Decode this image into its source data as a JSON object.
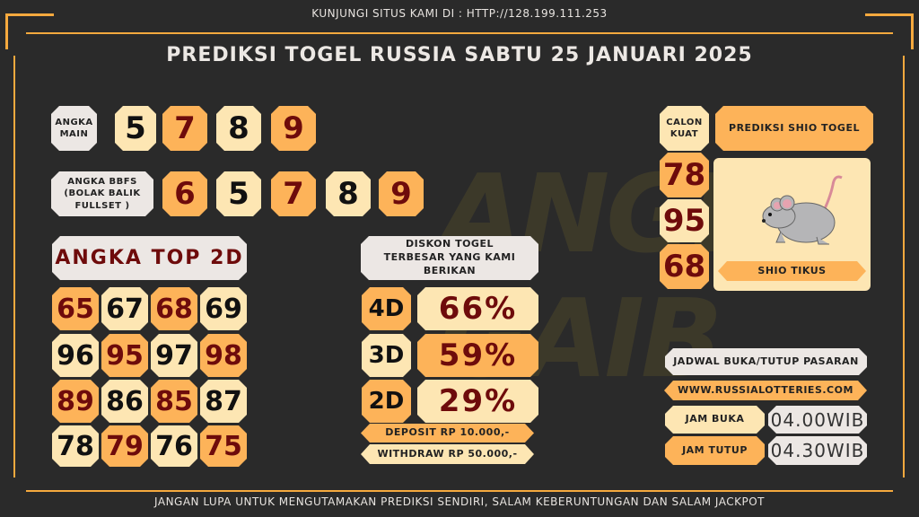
{
  "header": {
    "visit_text": "KUNJUNGI SITUS KAMI DI : HTTP://128.199.111.253",
    "title": "PREDIKSI TOGEL RUSSIA SABTU 25 JANUARI 2025"
  },
  "angka_main": {
    "label": "ANGKA MAIN",
    "digits": [
      "5",
      "7",
      "8",
      "9"
    ]
  },
  "bbfs": {
    "label": "ANGKA BBFS (BOLAK BALIK FULLSET )",
    "digits": [
      "6",
      "5",
      "7",
      "8",
      "9"
    ]
  },
  "top2d": {
    "title": "ANGKA TOP 2D",
    "rows": [
      [
        "65",
        "67",
        "68",
        "69"
      ],
      [
        "96",
        "95",
        "97",
        "98"
      ],
      [
        "89",
        "86",
        "85",
        "87"
      ],
      [
        "78",
        "79",
        "76",
        "75"
      ]
    ]
  },
  "diskon": {
    "title": "DISKON TOGEL TERBESAR YANG KAMI BERIKAN",
    "items": [
      {
        "code": "4D",
        "value": "66%"
      },
      {
        "code": "3D",
        "value": "59%"
      },
      {
        "code": "2D",
        "value": "29%"
      }
    ],
    "deposit": "DEPOSIT RP 10.000,-",
    "withdraw": "WITHDRAW RP 50.000,-"
  },
  "shio": {
    "calon_label": "CALON KUAT",
    "title": "PREDIKSI SHIO TOGEL",
    "calon": [
      "78",
      "95",
      "68"
    ],
    "name": "SHIO TIKUS",
    "icon": "rat-icon"
  },
  "jadwal": {
    "title": "JADWAL BUKA/TUTUP PASARAN",
    "site": "WWW.RUSSIALOTTERIES.COM",
    "buka_label": "JAM BUKA",
    "buka": "04.00WIB",
    "tutup_label": "JAM TUTUP",
    "tutup": "04.30WIB"
  },
  "footer": {
    "text": "JANGAN LUPA UNTUK MENGUTAMAKAN PREDIKSI SENDIRI, SALAM KEBERUNTUNGAN DAN SALAM JACKPOT"
  },
  "colors": {
    "bg": "#2a2a2a",
    "orange": "#fdb359",
    "cream": "#fde6b3",
    "gray": "#ece7e4",
    "darkred": "#6e0b0b"
  }
}
